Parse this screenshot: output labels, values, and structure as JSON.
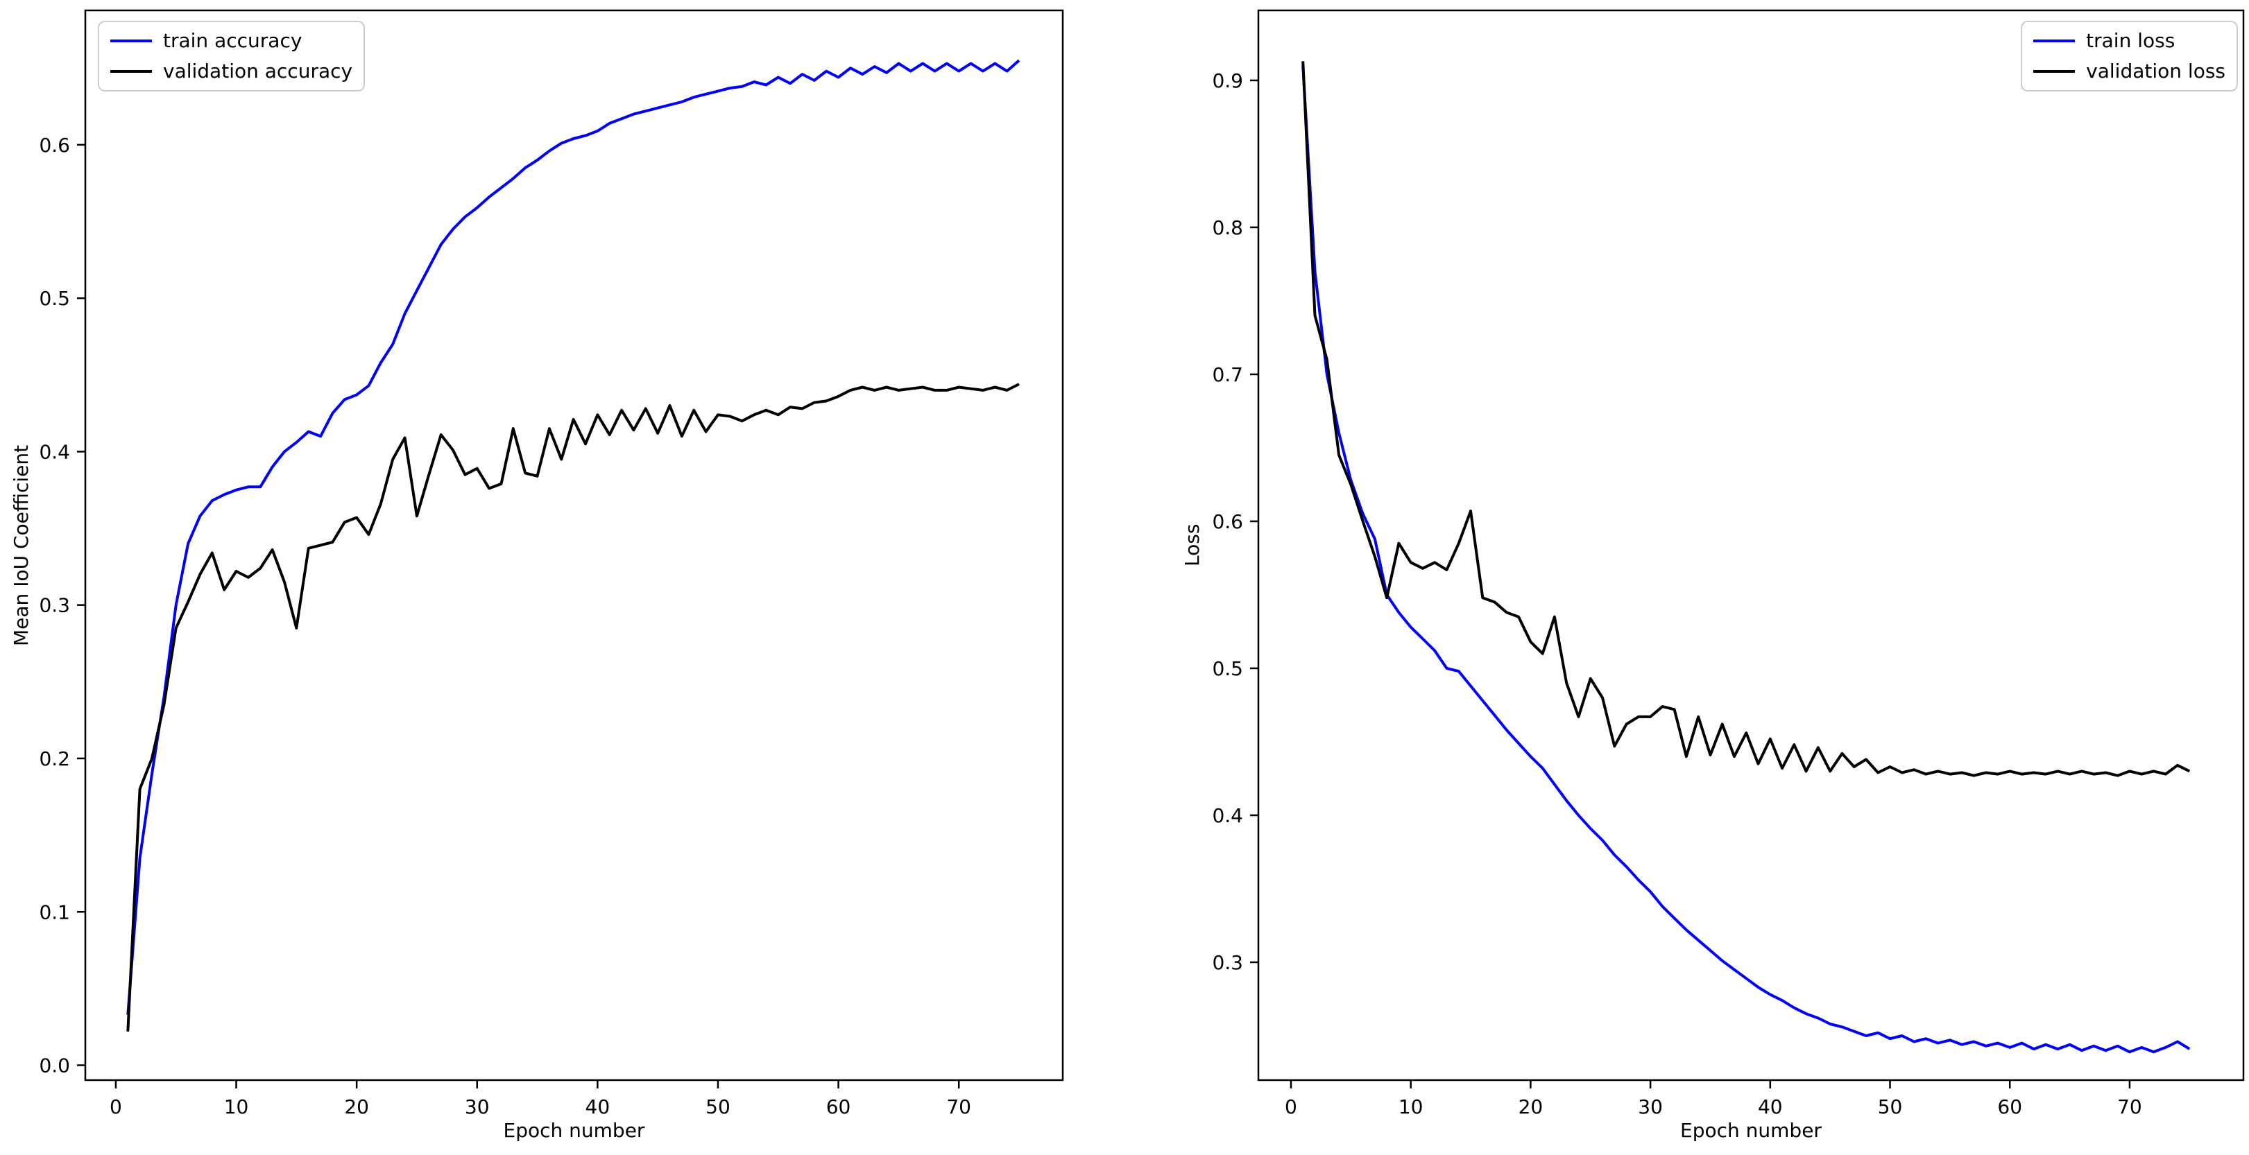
{
  "figure": {
    "background": "#ffffff",
    "accent_blue": "#0000ff",
    "accent_black": "#000000"
  },
  "chart_data": [
    {
      "type": "line",
      "title": "",
      "xlabel": "Epoch number",
      "ylabel": "Mean IoU Coefficient",
      "grid": false,
      "legend_position": "upper left",
      "x_start_epoch": 1,
      "xlim": [
        -2.53,
        78.63
      ],
      "ylim": [
        -0.0097,
        0.6876
      ],
      "xticks": [
        0,
        10,
        20,
        30,
        40,
        50,
        60,
        70
      ],
      "yticks": [
        "0.0",
        "0.1",
        "0.2",
        "0.3",
        "0.4",
        "0.5",
        "0.6"
      ],
      "series": [
        {
          "name": "train accuracy",
          "color": "#0000ff",
          "values": [
            0.033,
            0.135,
            0.19,
            0.24,
            0.3,
            0.34,
            0.358,
            0.368,
            0.372,
            0.375,
            0.377,
            0.377,
            0.39,
            0.4,
            0.406,
            0.413,
            0.41,
            0.425,
            0.434,
            0.437,
            0.443,
            0.458,
            0.47,
            0.49,
            0.505,
            0.52,
            0.535,
            0.545,
            0.553,
            0.559,
            0.566,
            0.572,
            0.578,
            0.585,
            0.59,
            0.596,
            0.601,
            0.604,
            0.606,
            0.609,
            0.614,
            0.617,
            0.62,
            0.622,
            0.624,
            0.626,
            0.628,
            0.631,
            0.633,
            0.635,
            0.637,
            0.638,
            0.641,
            0.639,
            0.644,
            0.64,
            0.646,
            0.642,
            0.648,
            0.644,
            0.65,
            0.646,
            0.651,
            0.647,
            0.653,
            0.648,
            0.653,
            0.648,
            0.653,
            0.648,
            0.653,
            0.648,
            0.653,
            0.648,
            0.655
          ]
        },
        {
          "name": "validation accuracy",
          "color": "#000000",
          "values": [
            0.022,
            0.18,
            0.2,
            0.235,
            0.285,
            0.302,
            0.32,
            0.334,
            0.31,
            0.322,
            0.318,
            0.324,
            0.336,
            0.315,
            0.285,
            0.337,
            0.339,
            0.341,
            0.354,
            0.357,
            0.346,
            0.366,
            0.395,
            0.409,
            0.358,
            0.385,
            0.411,
            0.401,
            0.385,
            0.389,
            0.376,
            0.379,
            0.415,
            0.386,
            0.384,
            0.415,
            0.395,
            0.421,
            0.405,
            0.424,
            0.411,
            0.427,
            0.414,
            0.428,
            0.412,
            0.43,
            0.41,
            0.427,
            0.413,
            0.424,
            0.423,
            0.42,
            0.424,
            0.427,
            0.424,
            0.429,
            0.428,
            0.432,
            0.433,
            0.436,
            0.44,
            0.442,
            0.44,
            0.442,
            0.44,
            0.441,
            0.442,
            0.44,
            0.44,
            0.442,
            0.441,
            0.44,
            0.442,
            0.44,
            0.444
          ]
        }
      ]
    },
    {
      "type": "line",
      "title": "",
      "xlabel": "Epoch number",
      "ylabel": "Loss",
      "grid": false,
      "legend_position": "upper right",
      "x_start_epoch": 1,
      "xlim": [
        -2.72,
        79.5
      ],
      "ylim": [
        0.2198,
        0.9476
      ],
      "xticks": [
        0,
        10,
        20,
        30,
        40,
        50,
        60,
        70
      ],
      "yticks": [
        "0.3",
        "0.4",
        "0.5",
        "0.6",
        "0.7",
        "0.8",
        "0.9"
      ],
      "series": [
        {
          "name": "train loss",
          "color": "#0000ff",
          "values": [
            0.91,
            0.77,
            0.7,
            0.66,
            0.628,
            0.605,
            0.588,
            0.55,
            0.538,
            0.528,
            0.52,
            0.512,
            0.5,
            0.498,
            0.488,
            0.478,
            0.468,
            0.458,
            0.449,
            0.44,
            0.432,
            0.421,
            0.41,
            0.4,
            0.391,
            0.383,
            0.373,
            0.365,
            0.356,
            0.348,
            0.338,
            0.33,
            0.322,
            0.315,
            0.308,
            0.301,
            0.295,
            0.289,
            0.283,
            0.278,
            0.274,
            0.269,
            0.265,
            0.262,
            0.258,
            0.256,
            0.253,
            0.25,
            0.252,
            0.248,
            0.25,
            0.246,
            0.248,
            0.245,
            0.247,
            0.244,
            0.246,
            0.243,
            0.245,
            0.242,
            0.245,
            0.241,
            0.244,
            0.241,
            0.244,
            0.24,
            0.243,
            0.24,
            0.243,
            0.239,
            0.242,
            0.239,
            0.242,
            0.246,
            0.241
          ]
        },
        {
          "name": "validation loss",
          "color": "#000000",
          "values": [
            0.913,
            0.74,
            0.71,
            0.645,
            0.625,
            0.6,
            0.576,
            0.548,
            0.585,
            0.572,
            0.568,
            0.572,
            0.567,
            0.585,
            0.607,
            0.548,
            0.545,
            0.538,
            0.535,
            0.518,
            0.51,
            0.535,
            0.49,
            0.467,
            0.493,
            0.48,
            0.447,
            0.462,
            0.467,
            0.467,
            0.474,
            0.472,
            0.44,
            0.467,
            0.441,
            0.462,
            0.44,
            0.456,
            0.435,
            0.452,
            0.432,
            0.448,
            0.43,
            0.446,
            0.43,
            0.442,
            0.433,
            0.438,
            0.429,
            0.433,
            0.429,
            0.431,
            0.428,
            0.43,
            0.428,
            0.429,
            0.427,
            0.429,
            0.428,
            0.43,
            0.428,
            0.429,
            0.428,
            0.43,
            0.428,
            0.43,
            0.428,
            0.429,
            0.427,
            0.43,
            0.428,
            0.43,
            0.428,
            0.434,
            0.43
          ]
        }
      ]
    }
  ]
}
